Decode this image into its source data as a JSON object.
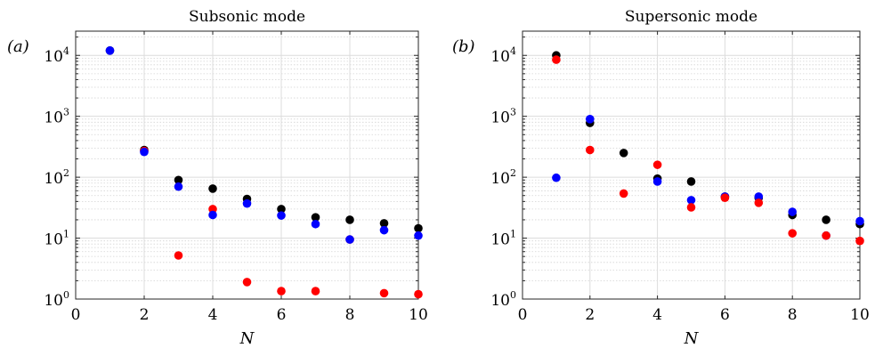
{
  "chart_data": [
    {
      "type": "scatter",
      "title": "Subsonic mode",
      "panel_label": "(a)",
      "xlabel": "N",
      "ylabel": "",
      "xlim": [
        0,
        10
      ],
      "ylim": [
        1,
        25000
      ],
      "yscale": "log",
      "grid": true,
      "x_ticks": [
        0,
        2,
        4,
        6,
        8,
        10
      ],
      "y_ticks": [
        1,
        10,
        100,
        1000,
        10000
      ],
      "y_tick_labels": [
        {
          "base": "10",
          "exp": "0"
        },
        {
          "base": "10",
          "exp": "1"
        },
        {
          "base": "10",
          "exp": "2"
        },
        {
          "base": "10",
          "exp": "3"
        },
        {
          "base": "10",
          "exp": "4"
        }
      ],
      "series": [
        {
          "color": "#000000",
          "x": [
            1,
            2,
            3,
            4,
            5,
            6,
            7,
            8,
            9,
            10
          ],
          "y": [
            12000,
            280,
            90,
            65,
            44,
            30,
            22,
            20,
            17.5,
            14.5
          ]
        },
        {
          "color": "#ff0000",
          "x": [
            2,
            3,
            4,
            5,
            6,
            7,
            8,
            9,
            10
          ],
          "y": [
            270,
            5.2,
            30,
            1.9,
            1.35,
            1.35,
            9.5,
            1.25,
            1.2
          ]
        },
        {
          "color": "#0000ff",
          "x": [
            1,
            2,
            3,
            4,
            5,
            6,
            7,
            8,
            9,
            10
          ],
          "y": [
            12000,
            260,
            70,
            24,
            37,
            23.5,
            17,
            9.5,
            13.5,
            11
          ]
        }
      ]
    },
    {
      "type": "scatter",
      "title": "Supersonic mode",
      "panel_label": "(b)",
      "xlabel": "N",
      "ylabel": "",
      "xlim": [
        0,
        10
      ],
      "ylim": [
        1,
        25000
      ],
      "yscale": "log",
      "grid": true,
      "x_ticks": [
        0,
        2,
        4,
        6,
        8,
        10
      ],
      "y_ticks": [
        1,
        10,
        100,
        1000,
        10000
      ],
      "y_tick_labels": [
        {
          "base": "10",
          "exp": "0"
        },
        {
          "base": "10",
          "exp": "1"
        },
        {
          "base": "10",
          "exp": "2"
        },
        {
          "base": "10",
          "exp": "3"
        },
        {
          "base": "10",
          "exp": "4"
        }
      ],
      "series": [
        {
          "color": "#000000",
          "x": [
            1,
            2,
            3,
            4,
            5,
            6,
            7,
            8,
            9,
            10
          ],
          "y": [
            10000,
            780,
            250,
            95,
            85,
            48,
            46,
            24,
            20,
            17
          ]
        },
        {
          "color": "#0000ff",
          "x": [
            1,
            2,
            3,
            4,
            5,
            6,
            7,
            8,
            9,
            10
          ],
          "y": [
            98,
            900,
            null,
            85,
            42,
            48,
            48,
            27,
            11,
            19
          ]
        },
        {
          "color": "#ff0000",
          "x": [
            1,
            2,
            3,
            4,
            5,
            6,
            7,
            8,
            9,
            10
          ],
          "y": [
            8500,
            280,
            54,
            160,
            32,
            46,
            38,
            12,
            11,
            9
          ]
        }
      ]
    }
  ]
}
